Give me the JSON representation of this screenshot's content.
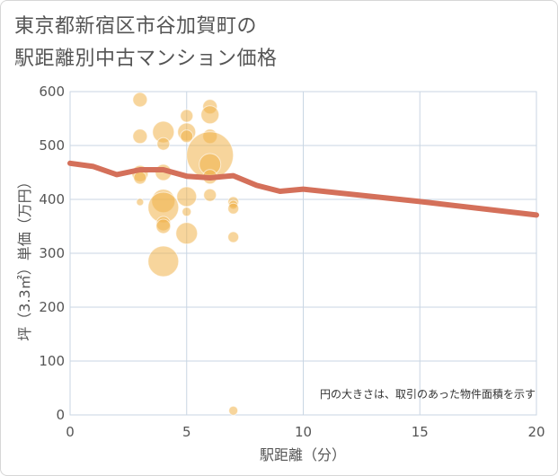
{
  "title_line1": "東京都新宿区市谷加賀町の",
  "title_line2": "駅距離別中古マンション価格",
  "chart_data": {
    "type": "scatter",
    "title": "東京都新宿区市谷加賀町の駅距離別中古マンション価格",
    "xlabel": "駅距離（分）",
    "ylabel": "坪（3.3㎡）単価（万円）",
    "xlim": [
      0,
      20
    ],
    "ylim": [
      0,
      600
    ],
    "xticks": [
      0,
      5,
      10,
      15,
      20
    ],
    "yticks": [
      0,
      100,
      200,
      300,
      400,
      500,
      600
    ],
    "grid": true,
    "note": "円の大きさは、取引のあった物件面積を示す",
    "colors": {
      "bubble": "#f0b24a",
      "trend": "#d4705a",
      "grid": "#c9d6e3"
    },
    "bubbles": [
      {
        "x": 3,
        "y": 585,
        "size": 8
      },
      {
        "x": 3,
        "y": 517,
        "size": 8
      },
      {
        "x": 3,
        "y": 448,
        "size": 9
      },
      {
        "x": 3,
        "y": 440,
        "size": 7
      },
      {
        "x": 3,
        "y": 395,
        "size": 4
      },
      {
        "x": 4,
        "y": 525,
        "size": 12
      },
      {
        "x": 4,
        "y": 503,
        "size": 7
      },
      {
        "x": 4,
        "y": 450,
        "size": 9
      },
      {
        "x": 4,
        "y": 397,
        "size": 13
      },
      {
        "x": 4,
        "y": 385,
        "size": 17
      },
      {
        "x": 4,
        "y": 355,
        "size": 8
      },
      {
        "x": 4,
        "y": 350,
        "size": 8
      },
      {
        "x": 4,
        "y": 285,
        "size": 17
      },
      {
        "x": 5,
        "y": 555,
        "size": 7
      },
      {
        "x": 5,
        "y": 525,
        "size": 10
      },
      {
        "x": 5,
        "y": 517,
        "size": 7
      },
      {
        "x": 5,
        "y": 405,
        "size": 11
      },
      {
        "x": 5,
        "y": 377,
        "size": 5
      },
      {
        "x": 5,
        "y": 337,
        "size": 12
      },
      {
        "x": 6,
        "y": 572,
        "size": 8
      },
      {
        "x": 6,
        "y": 557,
        "size": 10
      },
      {
        "x": 6,
        "y": 517,
        "size": 8
      },
      {
        "x": 6,
        "y": 482,
        "size": 26
      },
      {
        "x": 6,
        "y": 465,
        "size": 12
      },
      {
        "x": 6,
        "y": 442,
        "size": 8
      },
      {
        "x": 6,
        "y": 408,
        "size": 7
      },
      {
        "x": 7,
        "y": 395,
        "size": 6
      },
      {
        "x": 7,
        "y": 390,
        "size": 5
      },
      {
        "x": 7,
        "y": 383,
        "size": 6
      },
      {
        "x": 7,
        "y": 330,
        "size": 6
      },
      {
        "x": 7,
        "y": 8,
        "size": 5
      }
    ],
    "trend": {
      "x": [
        0,
        1,
        2,
        3,
        4,
        5,
        6,
        7,
        8,
        9,
        10,
        15,
        20
      ],
      "y": [
        467,
        461,
        446,
        455,
        455,
        443,
        440,
        444,
        426,
        415,
        419,
        396,
        371
      ]
    }
  }
}
